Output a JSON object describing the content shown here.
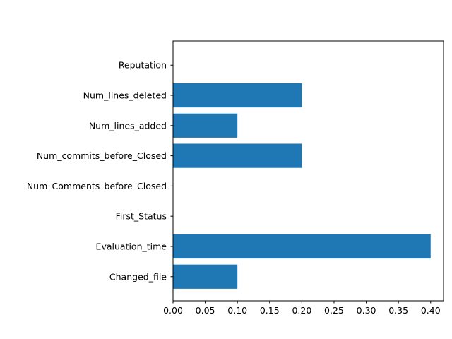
{
  "chart_data": {
    "type": "bar",
    "orientation": "horizontal",
    "title": "",
    "xlabel": "",
    "ylabel": "",
    "categories": [
      "Changed_file",
      "Evaluation_time",
      "First_Status",
      "Num_Comments_before_Closed",
      "Num_commits_before_Closed",
      "Num_lines_added",
      "Num_lines_deleted",
      "Reputation"
    ],
    "values": [
      0.1,
      0.4,
      0.0,
      0.0,
      0.2,
      0.1,
      0.2,
      0.0
    ],
    "xlim": [
      0.0,
      0.42
    ],
    "xticks": [
      0.0,
      0.05,
      0.1,
      0.15,
      0.2,
      0.25,
      0.3,
      0.35,
      0.4
    ],
    "xtick_labels": [
      "0.00",
      "0.05",
      "0.10",
      "0.15",
      "0.20",
      "0.25",
      "0.30",
      "0.35",
      "0.40"
    ],
    "bar_color": "#1f77b4",
    "grid": false,
    "legend": "none"
  }
}
